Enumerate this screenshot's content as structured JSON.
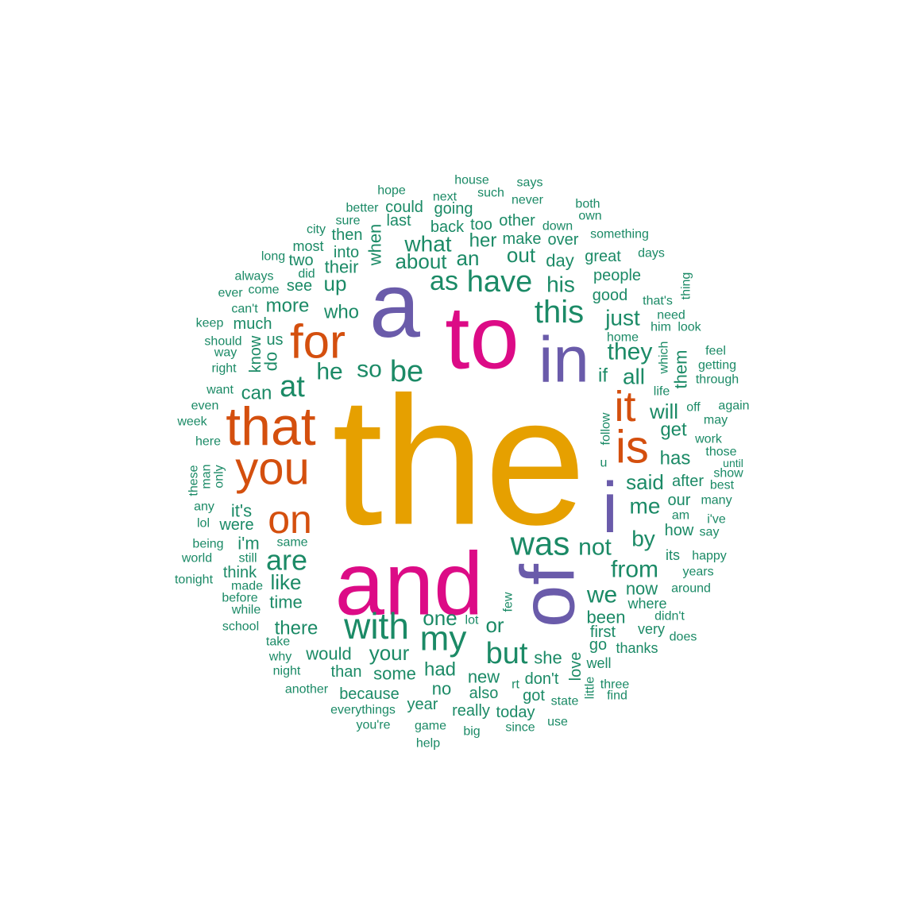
{
  "palette": {
    "gold": "#E6A000",
    "magenta": "#DC0B86",
    "purple": "#6A5BAA",
    "orange": "#D44F0E",
    "green": "#1B8A66"
  },
  "words": [
    {
      "text": "the",
      "tier": 1,
      "color": "gold"
    },
    {
      "text": "and",
      "tier": 2,
      "color": "magenta"
    },
    {
      "text": "to",
      "tier": 2,
      "color": "magenta"
    },
    {
      "text": "a",
      "tier": 2,
      "color": "purple"
    },
    {
      "text": "of",
      "tier": 3,
      "color": "purple"
    },
    {
      "text": "in",
      "tier": 3,
      "color": "purple"
    },
    {
      "text": "i",
      "tier": 3,
      "color": "purple"
    },
    {
      "text": "that",
      "tier": 4,
      "color": "orange"
    },
    {
      "text": "you",
      "tier": 4,
      "color": "orange"
    },
    {
      "text": "for",
      "tier": 4,
      "color": "orange"
    },
    {
      "text": "is",
      "tier": 4,
      "color": "orange"
    },
    {
      "text": "on",
      "tier": 4,
      "color": "orange"
    },
    {
      "text": "it",
      "tier": 4,
      "color": "orange"
    },
    {
      "text": "with",
      "tier": 5,
      "color": "green"
    },
    {
      "text": "was",
      "tier": 5,
      "color": "green"
    },
    {
      "text": "my",
      "tier": 5,
      "color": "green"
    },
    {
      "text": "this",
      "tier": 5,
      "color": "green"
    },
    {
      "text": "have",
      "tier": 5,
      "color": "green"
    },
    {
      "text": "are",
      "tier": 5,
      "color": "green"
    },
    {
      "text": "but",
      "tier": 5,
      "color": "green"
    },
    {
      "text": "be",
      "tier": 5,
      "color": "green"
    },
    {
      "text": "at",
      "tier": 5,
      "color": "green"
    },
    {
      "text": "as",
      "tier": 5,
      "color": "green"
    },
    {
      "text": "from",
      "tier": 6,
      "color": "green"
    },
    {
      "text": "not",
      "tier": 6,
      "color": "green"
    },
    {
      "text": "we",
      "tier": 6,
      "color": "green"
    },
    {
      "text": "they",
      "tier": 6,
      "color": "green"
    },
    {
      "text": "all",
      "tier": 6,
      "color": "green"
    },
    {
      "text": "what",
      "tier": 6,
      "color": "green"
    },
    {
      "text": "out",
      "tier": 6,
      "color": "green"
    },
    {
      "text": "his",
      "tier": 6,
      "color": "green"
    },
    {
      "text": "just",
      "tier": 6,
      "color": "green"
    },
    {
      "text": "will",
      "tier": 6,
      "color": "green"
    },
    {
      "text": "he",
      "tier": 6,
      "color": "green"
    },
    {
      "text": "so",
      "tier": 6,
      "color": "green"
    },
    {
      "text": "me",
      "tier": 6,
      "color": "green"
    },
    {
      "text": "said",
      "tier": 6,
      "color": "green"
    },
    {
      "text": "by",
      "tier": 6,
      "color": "green"
    },
    {
      "text": "one",
      "tier": 6,
      "color": "green"
    },
    {
      "text": "your",
      "tier": 6,
      "color": "green"
    },
    {
      "text": "like",
      "tier": 6,
      "color": "green"
    },
    {
      "text": "about",
      "tier": 6,
      "color": "green"
    },
    {
      "text": "an",
      "tier": 6,
      "color": "green"
    },
    {
      "text": "can",
      "tier": 7,
      "color": "green"
    },
    {
      "text": "up",
      "tier": 7,
      "color": "green"
    },
    {
      "text": "more",
      "tier": 7,
      "color": "green"
    },
    {
      "text": "who",
      "tier": 7,
      "color": "green"
    },
    {
      "text": "if",
      "tier": 7,
      "color": "green"
    },
    {
      "text": "has",
      "tier": 7,
      "color": "green"
    },
    {
      "text": "get",
      "tier": 7,
      "color": "green"
    },
    {
      "text": "had",
      "tier": 7,
      "color": "green"
    },
    {
      "text": "or",
      "tier": 7,
      "color": "green"
    },
    {
      "text": "there",
      "tier": 7,
      "color": "green"
    },
    {
      "text": "would",
      "tier": 7,
      "color": "green"
    },
    {
      "text": "some",
      "tier": 7,
      "color": "green"
    },
    {
      "text": "time",
      "tier": 7,
      "color": "green"
    },
    {
      "text": "it's",
      "tier": 7,
      "color": "green"
    },
    {
      "text": "i'm",
      "tier": 7,
      "color": "green"
    },
    {
      "text": "were",
      "tier": 7,
      "color": "green"
    },
    {
      "text": "their",
      "tier": 7,
      "color": "green"
    },
    {
      "text": "her",
      "tier": 7,
      "color": "green"
    },
    {
      "text": "do",
      "tier": 7,
      "color": "green"
    },
    {
      "text": "when",
      "tier": 7,
      "color": "green"
    },
    {
      "text": "them",
      "tier": 7,
      "color": "green"
    },
    {
      "text": "now",
      "tier": 7,
      "color": "green"
    },
    {
      "text": "been",
      "tier": 7,
      "color": "green"
    },
    {
      "text": "no",
      "tier": 7,
      "color": "green"
    },
    {
      "text": "new",
      "tier": 7,
      "color": "green"
    },
    {
      "text": "she",
      "tier": 7,
      "color": "green"
    },
    {
      "text": "day",
      "tier": 7,
      "color": "green"
    },
    {
      "text": "people",
      "tier": 8,
      "color": "green"
    },
    {
      "text": "good",
      "tier": 8,
      "color": "green"
    },
    {
      "text": "our",
      "tier": 8,
      "color": "green"
    },
    {
      "text": "how",
      "tier": 8,
      "color": "green"
    },
    {
      "text": "don't",
      "tier": 8,
      "color": "green"
    },
    {
      "text": "go",
      "tier": 8,
      "color": "green"
    },
    {
      "text": "first",
      "tier": 8,
      "color": "green"
    },
    {
      "text": "love",
      "tier": 8,
      "color": "green"
    },
    {
      "text": "also",
      "tier": 8,
      "color": "green"
    },
    {
      "text": "back",
      "tier": 8,
      "color": "green"
    },
    {
      "text": "make",
      "tier": 8,
      "color": "green"
    },
    {
      "text": "going",
      "tier": 8,
      "color": "green"
    },
    {
      "text": "great",
      "tier": 8,
      "color": "green"
    },
    {
      "text": "too",
      "tier": 8,
      "color": "green"
    },
    {
      "text": "other",
      "tier": 8,
      "color": "green"
    },
    {
      "text": "into",
      "tier": 8,
      "color": "green"
    },
    {
      "text": "then",
      "tier": 8,
      "color": "green"
    },
    {
      "text": "much",
      "tier": 8,
      "color": "green"
    },
    {
      "text": "know",
      "tier": 8,
      "color": "green"
    },
    {
      "text": "us",
      "tier": 8,
      "color": "green"
    },
    {
      "text": "see",
      "tier": 8,
      "color": "green"
    },
    {
      "text": "last",
      "tier": 8,
      "color": "green"
    },
    {
      "text": "could",
      "tier": 8,
      "color": "green"
    },
    {
      "text": "over",
      "tier": 8,
      "color": "green"
    },
    {
      "text": "after",
      "tier": 8,
      "color": "green"
    },
    {
      "text": "its",
      "tier": 8,
      "color": "green"
    },
    {
      "text": "well",
      "tier": 8,
      "color": "green"
    },
    {
      "text": "because",
      "tier": 8,
      "color": "green"
    },
    {
      "text": "than",
      "tier": 8,
      "color": "green"
    },
    {
      "text": "year",
      "tier": 8,
      "color": "green"
    },
    {
      "text": "really",
      "tier": 8,
      "color": "green"
    },
    {
      "text": "today",
      "tier": 8,
      "color": "green"
    },
    {
      "text": "got",
      "tier": 8,
      "color": "green"
    },
    {
      "text": "think",
      "tier": 8,
      "color": "green"
    },
    {
      "text": "very",
      "tier": 8,
      "color": "green"
    },
    {
      "text": "where",
      "tier": 8,
      "color": "green"
    },
    {
      "text": "thanks",
      "tier": 8,
      "color": "green"
    },
    {
      "text": "two",
      "tier": 8,
      "color": "green"
    },
    {
      "text": "most",
      "tier": 8,
      "color": "green"
    },
    {
      "text": "house",
      "tier": 9,
      "color": "green"
    },
    {
      "text": "says",
      "tier": 9,
      "color": "green"
    },
    {
      "text": "hope",
      "tier": 9,
      "color": "green"
    },
    {
      "text": "such",
      "tier": 9,
      "color": "green"
    },
    {
      "text": "next",
      "tier": 9,
      "color": "green"
    },
    {
      "text": "never",
      "tier": 9,
      "color": "green"
    },
    {
      "text": "both",
      "tier": 9,
      "color": "green"
    },
    {
      "text": "better",
      "tier": 9,
      "color": "green"
    },
    {
      "text": "own",
      "tier": 9,
      "color": "green"
    },
    {
      "text": "sure",
      "tier": 9,
      "color": "green"
    },
    {
      "text": "down",
      "tier": 9,
      "color": "green"
    },
    {
      "text": "city",
      "tier": 9,
      "color": "green"
    },
    {
      "text": "something",
      "tier": 9,
      "color": "green"
    },
    {
      "text": "long",
      "tier": 9,
      "color": "green"
    },
    {
      "text": "days",
      "tier": 9,
      "color": "green"
    },
    {
      "text": "did",
      "tier": 9,
      "color": "green"
    },
    {
      "text": "always",
      "tier": 9,
      "color": "green"
    },
    {
      "text": "thing",
      "tier": 9,
      "color": "green"
    },
    {
      "text": "ever",
      "tier": 9,
      "color": "green"
    },
    {
      "text": "come",
      "tier": 9,
      "color": "green"
    },
    {
      "text": "that's",
      "tier": 9,
      "color": "green"
    },
    {
      "text": "can't",
      "tier": 9,
      "color": "green"
    },
    {
      "text": "need",
      "tier": 9,
      "color": "green"
    },
    {
      "text": "keep",
      "tier": 9,
      "color": "green"
    },
    {
      "text": "him",
      "tier": 9,
      "color": "green"
    },
    {
      "text": "look",
      "tier": 9,
      "color": "green"
    },
    {
      "text": "home",
      "tier": 9,
      "color": "green"
    },
    {
      "text": "should",
      "tier": 9,
      "color": "green"
    },
    {
      "text": "which",
      "tier": 9,
      "color": "green"
    },
    {
      "text": "way",
      "tier": 9,
      "color": "green"
    },
    {
      "text": "feel",
      "tier": 9,
      "color": "green"
    },
    {
      "text": "getting",
      "tier": 9,
      "color": "green"
    },
    {
      "text": "right",
      "tier": 9,
      "color": "green"
    },
    {
      "text": "through",
      "tier": 9,
      "color": "green"
    },
    {
      "text": "want",
      "tier": 9,
      "color": "green"
    },
    {
      "text": "life",
      "tier": 9,
      "color": "green"
    },
    {
      "text": "even",
      "tier": 9,
      "color": "green"
    },
    {
      "text": "off",
      "tier": 9,
      "color": "green"
    },
    {
      "text": "again",
      "tier": 9,
      "color": "green"
    },
    {
      "text": "follow",
      "tier": 9,
      "color": "green"
    },
    {
      "text": "week",
      "tier": 9,
      "color": "green"
    },
    {
      "text": "may",
      "tier": 9,
      "color": "green"
    },
    {
      "text": "work",
      "tier": 9,
      "color": "green"
    },
    {
      "text": "here",
      "tier": 9,
      "color": "green"
    },
    {
      "text": "those",
      "tier": 9,
      "color": "green"
    },
    {
      "text": "until",
      "tier": 9,
      "color": "green"
    },
    {
      "text": "u",
      "tier": 9,
      "color": "green"
    },
    {
      "text": "these",
      "tier": 9,
      "color": "green"
    },
    {
      "text": "man",
      "tier": 9,
      "color": "green"
    },
    {
      "text": "only",
      "tier": 9,
      "color": "green"
    },
    {
      "text": "show",
      "tier": 9,
      "color": "green"
    },
    {
      "text": "best",
      "tier": 9,
      "color": "green"
    },
    {
      "text": "many",
      "tier": 9,
      "color": "green"
    },
    {
      "text": "any",
      "tier": 9,
      "color": "green"
    },
    {
      "text": "am",
      "tier": 9,
      "color": "green"
    },
    {
      "text": "lol",
      "tier": 9,
      "color": "green"
    },
    {
      "text": "i've",
      "tier": 9,
      "color": "green"
    },
    {
      "text": "say",
      "tier": 9,
      "color": "green"
    },
    {
      "text": "same",
      "tier": 9,
      "color": "green"
    },
    {
      "text": "being",
      "tier": 9,
      "color": "green"
    },
    {
      "text": "happy",
      "tier": 9,
      "color": "green"
    },
    {
      "text": "world",
      "tier": 9,
      "color": "green"
    },
    {
      "text": "still",
      "tier": 9,
      "color": "green"
    },
    {
      "text": "years",
      "tier": 9,
      "color": "green"
    },
    {
      "text": "tonight",
      "tier": 9,
      "color": "green"
    },
    {
      "text": "made",
      "tier": 9,
      "color": "green"
    },
    {
      "text": "around",
      "tier": 9,
      "color": "green"
    },
    {
      "text": "before",
      "tier": 9,
      "color": "green"
    },
    {
      "text": "few",
      "tier": 9,
      "color": "green"
    },
    {
      "text": "while",
      "tier": 9,
      "color": "green"
    },
    {
      "text": "didn't",
      "tier": 9,
      "color": "green"
    },
    {
      "text": "lot",
      "tier": 9,
      "color": "green"
    },
    {
      "text": "school",
      "tier": 9,
      "color": "green"
    },
    {
      "text": "does",
      "tier": 9,
      "color": "green"
    },
    {
      "text": "take",
      "tier": 9,
      "color": "green"
    },
    {
      "text": "why",
      "tier": 9,
      "color": "green"
    },
    {
      "text": "night",
      "tier": 9,
      "color": "green"
    },
    {
      "text": "little",
      "tier": 9,
      "color": "green"
    },
    {
      "text": "rt",
      "tier": 9,
      "color": "green"
    },
    {
      "text": "three",
      "tier": 9,
      "color": "green"
    },
    {
      "text": "find",
      "tier": 9,
      "color": "green"
    },
    {
      "text": "another",
      "tier": 9,
      "color": "green"
    },
    {
      "text": "state",
      "tier": 9,
      "color": "green"
    },
    {
      "text": "everythings",
      "tier": 9,
      "color": "green"
    },
    {
      "text": "you're",
      "tier": 9,
      "color": "green"
    },
    {
      "text": "game",
      "tier": 9,
      "color": "green"
    },
    {
      "text": "big",
      "tier": 9,
      "color": "green"
    },
    {
      "text": "since",
      "tier": 9,
      "color": "green"
    },
    {
      "text": "use",
      "tier": 9,
      "color": "green"
    },
    {
      "text": "help",
      "tier": 9,
      "color": "green"
    }
  ]
}
